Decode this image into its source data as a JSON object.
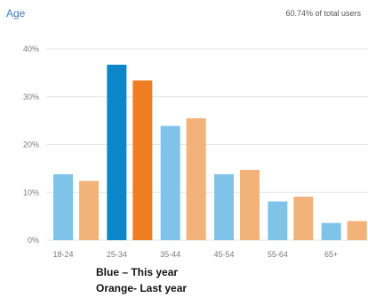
{
  "chart_data": {
    "type": "bar",
    "title": "Age",
    "subtitle": "60.74% of total users",
    "categories": [
      "18-24",
      "25-34",
      "35-44",
      "45-54",
      "55-64",
      "65+"
    ],
    "series": [
      {
        "name": "",
        "color_main": "#0b86c9",
        "values": [
          13.8,
          36.7,
          23.9,
          13.8,
          8.1,
          3.6
        ]
      },
      {
        "name": "",
        "color_main": "#ef7d22",
        "values": [
          12.4,
          33.4,
          25.5,
          14.7,
          9.1,
          4.0
        ]
      }
    ],
    "ylim": [
      0,
      40
    ],
    "yticks": [
      0,
      10,
      20,
      30,
      40
    ],
    "ytick_labels": [
      "0%",
      "10%",
      "20%",
      "30%",
      "40%"
    ],
    "highlighted_category": "25-34",
    "colors": {
      "this_year": "#0b86c9",
      "this_year_light": "#7fc4e8",
      "last_year": "#ef7d22",
      "last_year_light": "#f3b27a",
      "grid": "#e6e6e6"
    },
    "grid": true,
    "annotations": [
      "Blue – This year",
      "Orange- Last year"
    ]
  }
}
